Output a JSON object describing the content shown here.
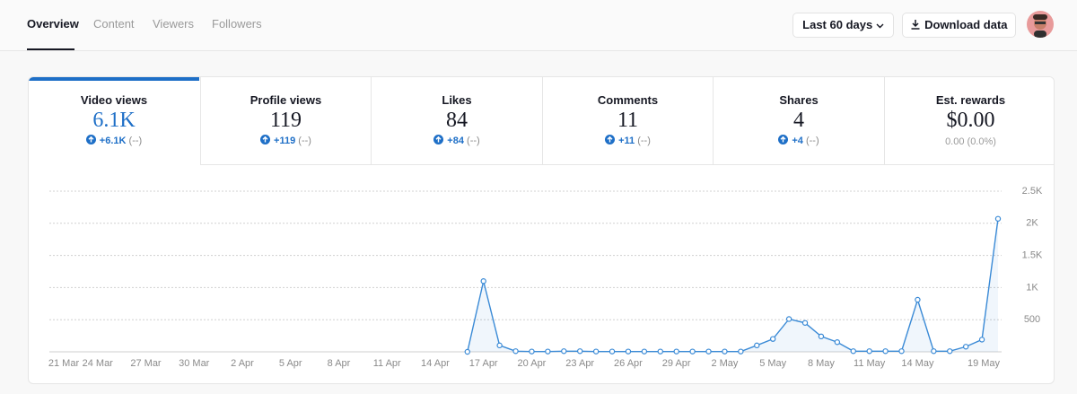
{
  "nav": {
    "tabs": [
      "Overview",
      "Content",
      "Viewers",
      "Followers"
    ],
    "active": 0
  },
  "toolbar": {
    "range_button": "Last 60 days",
    "download_button": "Download data"
  },
  "metrics": [
    {
      "label": "Video views",
      "value": "6.1K",
      "change": "+6.1K",
      "previous": "(--)"
    },
    {
      "label": "Profile views",
      "value": "119",
      "change": "+119",
      "previous": "(--)"
    },
    {
      "label": "Likes",
      "value": "84",
      "change": "+84",
      "previous": "(--)"
    },
    {
      "label": "Comments",
      "value": "11",
      "change": "+11",
      "previous": "(--)"
    },
    {
      "label": "Shares",
      "value": "4",
      "change": "+4",
      "previous": "(--)"
    },
    {
      "label": "Est. rewards",
      "value": "$0.00",
      "note": "0.00 (0.0%)"
    }
  ],
  "chart_data": {
    "type": "line",
    "categories": [
      "21 Mar",
      null,
      null,
      "24 Mar",
      null,
      null,
      "27 Mar",
      null,
      null,
      "30 Mar",
      null,
      null,
      "2 Apr",
      null,
      null,
      "5 Apr",
      null,
      null,
      "8 Apr",
      null,
      null,
      "11 Apr",
      null,
      null,
      "14 Apr",
      null,
      null,
      "17 Apr",
      null,
      null,
      "20 Apr",
      null,
      null,
      "23 Apr",
      null,
      null,
      "26 Apr",
      null,
      null,
      "29 Apr",
      null,
      null,
      "2 May",
      null,
      null,
      "5 May",
      null,
      null,
      "8 May",
      null,
      null,
      "11 May",
      null,
      null,
      "14 May",
      null,
      null,
      null,
      null,
      "19 May"
    ],
    "series": [
      {
        "name": "Video views",
        "color": "#3a8ad6",
        "values": [
          null,
          null,
          null,
          null,
          null,
          null,
          null,
          null,
          null,
          null,
          null,
          null,
          null,
          null,
          null,
          null,
          null,
          null,
          null,
          null,
          null,
          null,
          null,
          null,
          null,
          null,
          0,
          1100,
          100,
          10,
          5,
          5,
          10,
          10,
          5,
          5,
          5,
          5,
          5,
          5,
          5,
          5,
          5,
          5,
          100,
          200,
          510,
          450,
          240,
          150,
          10,
          10,
          10,
          10,
          810,
          10,
          10,
          80,
          190,
          2070
        ]
      }
    ],
    "ylim": [
      0,
      2500
    ],
    "yticks": [
      500,
      {
        "value": 1000,
        "label": "1K"
      },
      {
        "value": 1500,
        "label": "1.5K"
      },
      {
        "value": 2000,
        "label": "2K"
      },
      {
        "value": 2500,
        "label": "2.5K"
      }
    ],
    "grid": true
  }
}
